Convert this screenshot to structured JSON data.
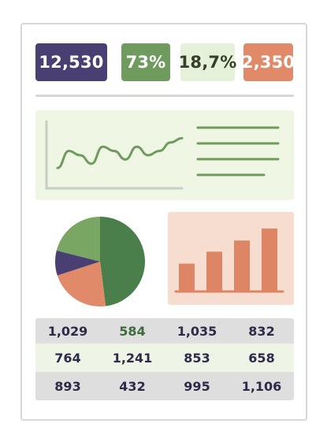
{
  "kpis": [
    {
      "value": "12,530"
    },
    {
      "value": "73%"
    },
    {
      "value": "18,7%"
    },
    {
      "value": "2,350"
    }
  ],
  "line_chart": {
    "type": "line",
    "series": [
      {
        "values": [
          2,
          6,
          5,
          3,
          7,
          6,
          4,
          7,
          5,
          6,
          8,
          9
        ]
      }
    ],
    "legend_lines": 4
  },
  "chart_data": [
    {
      "type": "pie",
      "slices": [
        {
          "value": 48,
          "color": "#4a7f4c"
        },
        {
          "value": 22,
          "color": "#e08a6a"
        },
        {
          "value": 9,
          "color": "#4a3f72"
        },
        {
          "value": 21,
          "color": "#7aa663"
        }
      ]
    },
    {
      "type": "bar",
      "values": [
        34,
        49,
        63,
        78
      ],
      "ylim": [
        0,
        85
      ],
      "color": "#de8566"
    }
  ],
  "table": {
    "rows": [
      [
        "1,029",
        "584",
        "1,035",
        "832"
      ],
      [
        "764",
        "1,241",
        "853",
        "658"
      ],
      [
        "893",
        "432",
        "995",
        "1,106"
      ]
    ]
  },
  "colors": {
    "purple": "#4a3f72",
    "green": "#6f9b5e",
    "light_green": "#e5f1d8",
    "coral": "#e08a6a"
  }
}
